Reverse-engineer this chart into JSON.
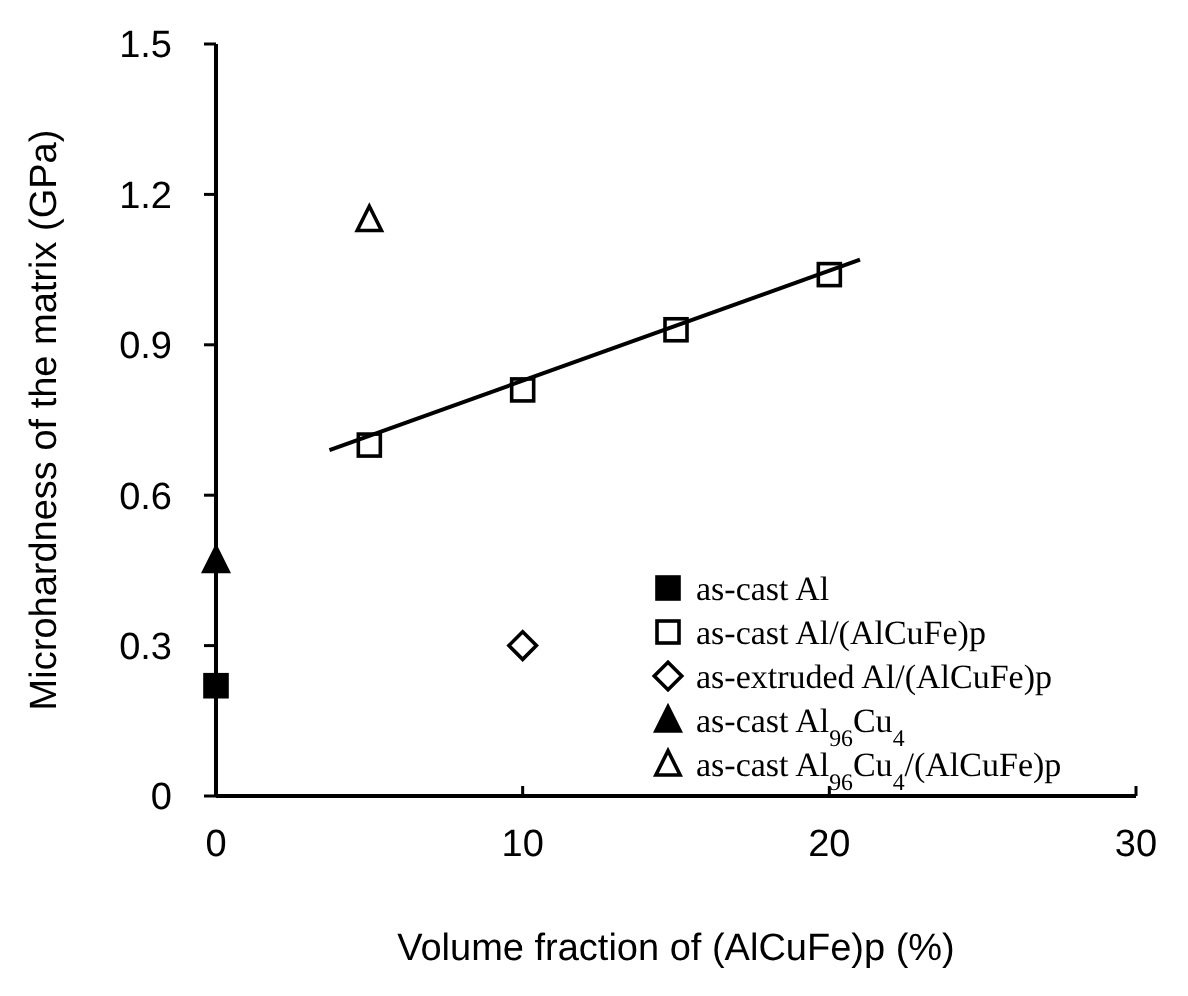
{
  "chart_data": {
    "type": "scatter",
    "xlabel": "Volume fraction of (AlCuFe)p (%)",
    "ylabel": "Microhardness of the matrix (GPa)",
    "xlim": [
      0,
      30
    ],
    "xticks": [
      0,
      10,
      20,
      30
    ],
    "ylim": [
      0,
      1.5
    ],
    "yticks": [
      0,
      0.3,
      0.6,
      0.9,
      1.2,
      1.5
    ],
    "grid": false,
    "legend": "bottom right",
    "series": [
      {
        "name": "as-cast Al",
        "marker": "square",
        "color": "#000000",
        "x": [
          0
        ],
        "values": [
          0.22
        ]
      },
      {
        "name": "as-cast Al/(AlCuFe)p",
        "marker": "square",
        "color": "#ffffff",
        "x": [
          5,
          10,
          15,
          20
        ],
        "values": [
          0.7,
          0.81,
          0.93,
          1.04
        ]
      },
      {
        "name": "as-extruded Al/(AlCuFe)p",
        "marker": "diamond",
        "color": "#ffffff",
        "x": [
          10
        ],
        "values": [
          0.3
        ]
      },
      {
        "name": "as-cast Al$_{96}$Cu$_{4}$",
        "marker": "triangle",
        "color": "#000000",
        "x": [
          0
        ],
        "values": [
          0.47
        ]
      },
      {
        "name": "as-cast Al$_{96}$Cu$_{4}$/(AlCuFe)p",
        "marker": "triangle",
        "color": "#ffffff",
        "x": [
          5
        ],
        "values": [
          1.15
        ]
      },
      {
        "type": "line",
        "marker": "none",
        "color": "#000000",
        "x": [
          3.7,
          21
        ],
        "values": [
          0.69,
          1.07
        ]
      }
    ]
  }
}
